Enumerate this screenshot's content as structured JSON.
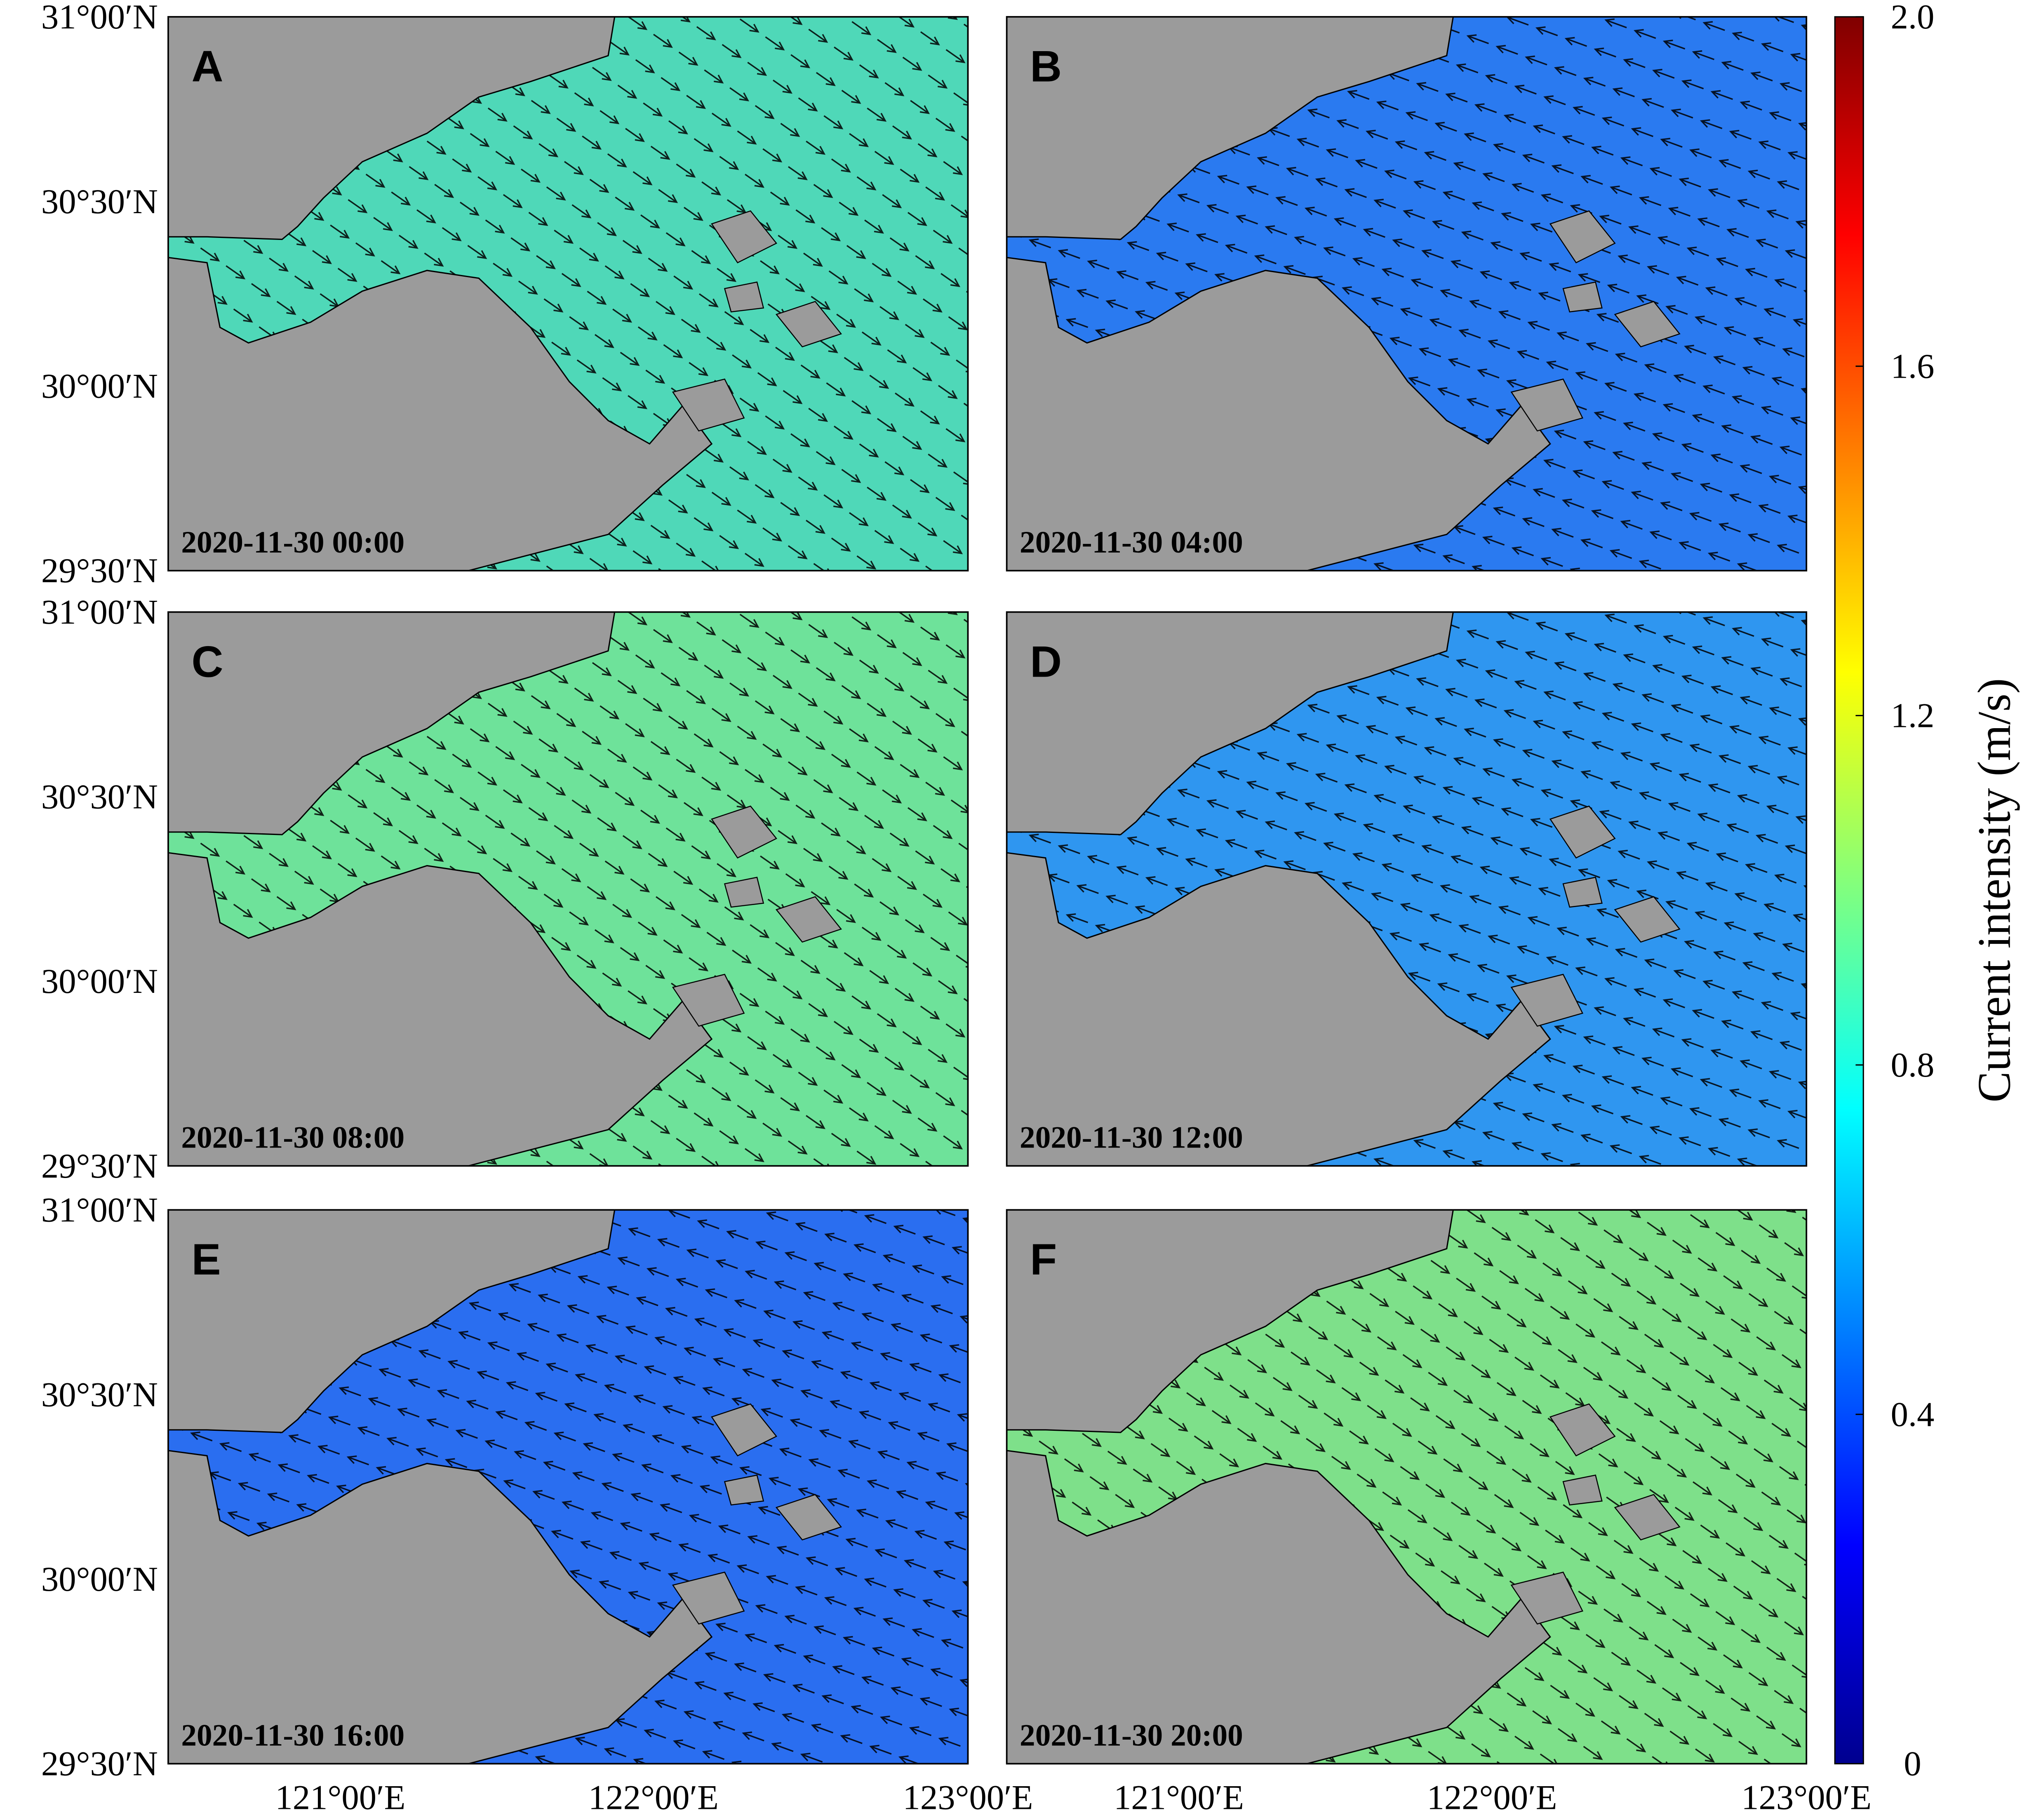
{
  "panels": [
    {
      "label": "A",
      "timestamp": "2020-11-30 00:00",
      "sea_color": "#4fd8b8"
    },
    {
      "label": "B",
      "timestamp": "2020-11-30 04:00",
      "sea_color": "#2a7af0"
    },
    {
      "label": "C",
      "timestamp": "2020-11-30 08:00",
      "sea_color": "#6ee29a"
    },
    {
      "label": "D",
      "timestamp": "2020-11-30 12:00",
      "sea_color": "#2f96f0"
    },
    {
      "label": "E",
      "timestamp": "2020-11-30 16:00",
      "sea_color": "#2a6ef0"
    },
    {
      "label": "F",
      "timestamp": "2020-11-30 20:00",
      "sea_color": "#7ee08a"
    }
  ],
  "y_axis": {
    "ticks": [
      "31°00′N",
      "30°30′N",
      "30°00′N",
      "29°30′N"
    ]
  },
  "x_axis": {
    "ticks": [
      "121°00′E",
      "122°00′E",
      "123°00′E"
    ]
  },
  "colorbar": {
    "label": "Current intensity (m/s)",
    "lim": [
      0,
      2
    ],
    "ticks": [
      0,
      0.4,
      0.8,
      1.2,
      1.6,
      {
        "value": 2,
        "label": "2.0"
      }
    ]
  }
}
